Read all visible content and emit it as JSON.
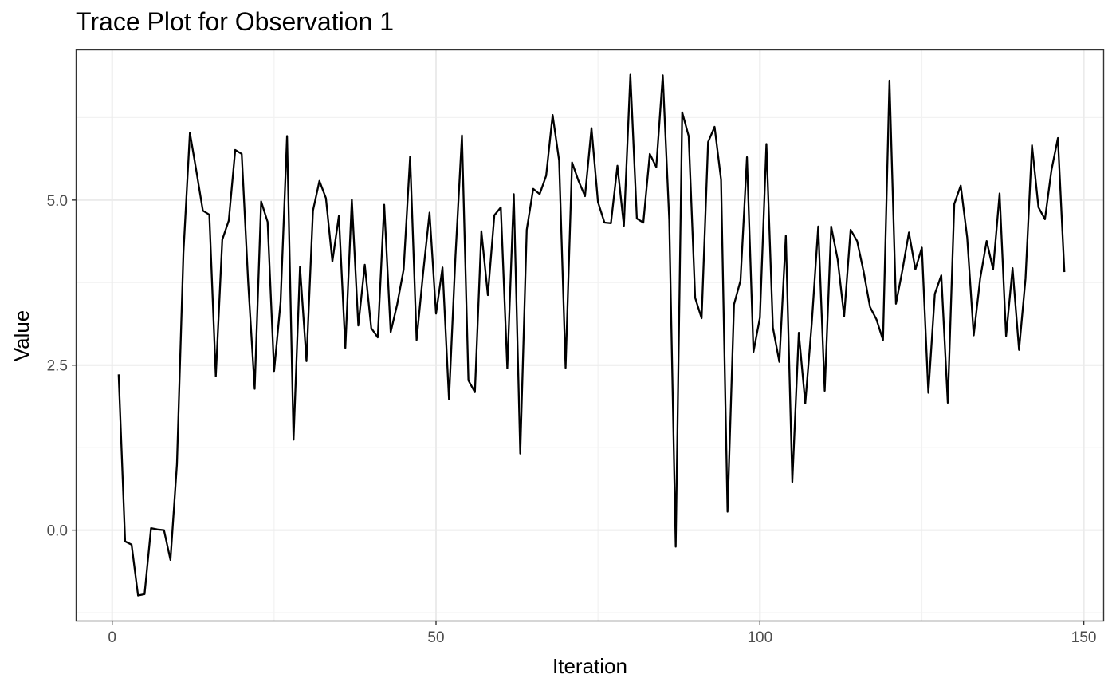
{
  "chart_data": {
    "type": "line",
    "title": "Trace Plot for Observation 1",
    "xlabel": "Iteration",
    "ylabel": "Value",
    "xlim": [
      -5.5,
      153
    ],
    "ylim": [
      -1.37,
      7.27
    ],
    "x_major_ticks": [
      0,
      50,
      100,
      150
    ],
    "x_major_tick_labels": [
      "0",
      "50",
      "100",
      "150"
    ],
    "x_minor_ticks": [
      25,
      75,
      125
    ],
    "y_major_ticks": [
      0,
      2.5,
      5
    ],
    "y_major_tick_labels": [
      "0.0",
      "2.5",
      "5.0"
    ],
    "y_minor_ticks": [
      -1.25,
      1.25,
      3.75,
      6.25
    ],
    "grid": true,
    "line_color": "#000000",
    "x": [
      1,
      2,
      3,
      4,
      5,
      6,
      7,
      8,
      9,
      10,
      11,
      12,
      13,
      14,
      15,
      16,
      17,
      18,
      19,
      20,
      21,
      22,
      23,
      24,
      25,
      26,
      27,
      28,
      29,
      30,
      31,
      32,
      33,
      34,
      35,
      36,
      37,
      38,
      39,
      40,
      41,
      42,
      43,
      44,
      45,
      46,
      47,
      48,
      49,
      50,
      51,
      52,
      53,
      54,
      55,
      56,
      57,
      58,
      59,
      60,
      61,
      62,
      63,
      64,
      65,
      66,
      67,
      68,
      69,
      70,
      71,
      72,
      73,
      74,
      75,
      76,
      77,
      78,
      79,
      80,
      81,
      82,
      83,
      84,
      85,
      86,
      87,
      88,
      89,
      90,
      91,
      92,
      93,
      94,
      95,
      96,
      97,
      98,
      99,
      100,
      101,
      102,
      103,
      104,
      105,
      106,
      107,
      108,
      109,
      110,
      111,
      112,
      113,
      114,
      115,
      116,
      117,
      118,
      119,
      120,
      121,
      122,
      123,
      124,
      125,
      126,
      127,
      128,
      129,
      130,
      131,
      132,
      133,
      134,
      135,
      136,
      137,
      138,
      139,
      140,
      141,
      142,
      143,
      144,
      145,
      146,
      147
    ],
    "y": [
      2.36,
      -0.17,
      -0.22,
      -0.99,
      -0.97,
      0.03,
      0.01,
      0.0,
      -0.45,
      1.0,
      4.2,
      6.02,
      5.44,
      4.84,
      4.78,
      2.33,
      4.4,
      4.69,
      5.76,
      5.7,
      3.75,
      2.14,
      4.98,
      4.67,
      2.41,
      3.45,
      5.97,
      1.37,
      3.99,
      2.56,
      4.84,
      5.29,
      5.03,
      4.07,
      4.76,
      2.76,
      5.01,
      3.1,
      4.02,
      3.06,
      2.92,
      4.93,
      3.0,
      3.42,
      3.95,
      5.66,
      2.88,
      3.89,
      4.81,
      3.28,
      3.98,
      1.98,
      4.15,
      5.98,
      2.27,
      2.09,
      4.53,
      3.56,
      4.77,
      4.89,
      2.45,
      5.09,
      1.16,
      4.55,
      5.17,
      5.09,
      5.37,
      6.29,
      5.6,
      2.46,
      5.57,
      5.29,
      5.06,
      6.09,
      4.97,
      4.66,
      4.65,
      5.52,
      4.61,
      6.9,
      4.72,
      4.66,
      5.7,
      5.5,
      6.89,
      4.7,
      -0.25,
      6.33,
      5.97,
      3.52,
      3.21,
      5.88,
      6.11,
      5.31,
      0.28,
      3.42,
      3.78,
      5.65,
      2.7,
      3.22,
      5.85,
      3.07,
      2.55,
      4.46,
      0.73,
      2.99,
      1.92,
      3.13,
      4.6,
      2.11,
      4.6,
      4.1,
      3.24,
      4.55,
      4.38,
      3.92,
      3.38,
      3.19,
      2.88,
      6.81,
      3.43,
      3.94,
      4.51,
      3.95,
      4.28,
      2.08,
      3.58,
      3.86,
      1.93,
      4.94,
      5.22,
      4.43,
      2.95,
      3.81,
      4.38,
      3.95,
      5.1,
      2.94,
      3.97,
      2.73,
      3.81,
      5.83,
      4.89,
      4.71,
      5.45,
      5.94,
      3.91
    ]
  }
}
